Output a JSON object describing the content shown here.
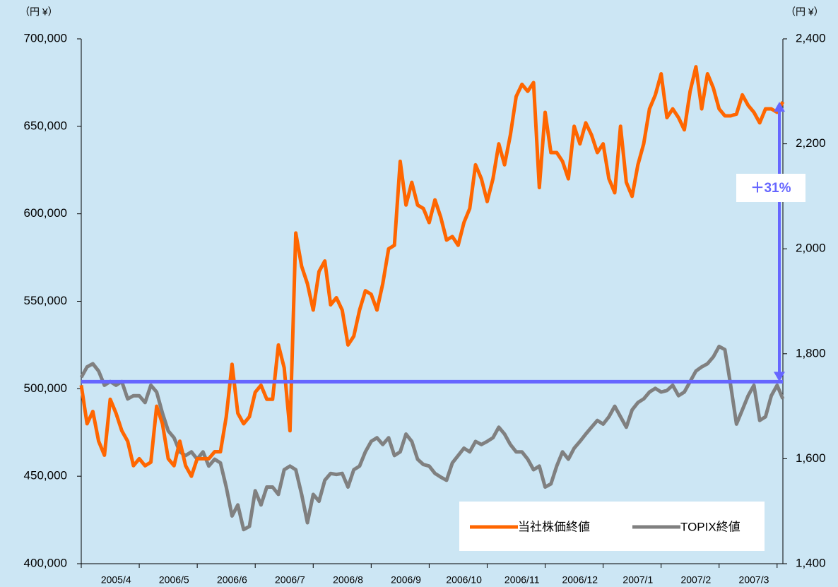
{
  "chart_data": {
    "type": "line",
    "y_unit_label": "（円 ¥）",
    "y2_unit_label": "（円 ¥）",
    "categories": [
      null,
      null,
      null,
      null,
      null,
      null,
      "2005/4",
      null,
      null,
      null,
      null,
      null,
      null,
      null,
      null,
      null,
      "2006/5",
      null,
      null,
      null,
      null,
      null,
      null,
      null,
      null,
      null,
      "2006/6",
      null,
      null,
      null,
      null,
      null,
      null,
      null,
      null,
      null,
      "2006/7",
      null,
      null,
      null,
      null,
      null,
      null,
      null,
      null,
      null,
      "2006/8",
      null,
      null,
      null,
      null,
      null,
      null,
      null,
      null,
      null,
      "2006/9",
      null,
      null,
      null,
      null,
      null,
      null,
      null,
      null,
      null,
      "2006/10",
      null,
      null,
      null,
      null,
      null,
      null,
      null,
      null,
      null,
      "2006/11",
      null,
      null,
      null,
      null,
      null,
      null,
      null,
      null,
      null,
      "2006/12",
      null,
      null,
      null,
      null,
      null,
      null,
      null,
      null,
      null,
      "2007/1",
      null,
      null,
      null,
      null,
      null,
      null,
      null,
      null,
      null,
      "2007/2",
      null,
      null,
      null,
      null,
      null,
      null,
      null,
      null,
      null,
      "2007/3",
      null,
      null,
      null,
      null,
      null
    ],
    "series": [
      {
        "name": "当社株価終値",
        "color": "#ff6600",
        "axis": "y",
        "values": [
          502000,
          480000,
          487000,
          470000,
          462000,
          494000,
          486000,
          476000,
          470000,
          456000,
          460000,
          456000,
          458000,
          490000,
          480000,
          460000,
          456000,
          470000,
          456000,
          450000,
          460000,
          460000,
          460000,
          464000,
          464000,
          484000,
          514000,
          486000,
          480000,
          484000,
          498000,
          502000,
          494000,
          494000,
          525000,
          512000,
          476000,
          589000,
          570000,
          560000,
          545000,
          567000,
          573000,
          548000,
          552000,
          545000,
          525000,
          530000,
          545000,
          556000,
          554000,
          545000,
          560000,
          580000,
          582000,
          630000,
          605000,
          618000,
          605000,
          603000,
          595000,
          608000,
          598000,
          585000,
          587000,
          582000,
          595000,
          603000,
          628000,
          620000,
          607000,
          620000,
          640000,
          628000,
          645000,
          667000,
          674000,
          670000,
          675000,
          615000,
          658000,
          635000,
          635000,
          630000,
          620000,
          650000,
          640000,
          652000,
          645000,
          635000,
          640000,
          620000,
          612000,
          650000,
          618000,
          610000,
          628000,
          640000,
          660000,
          668000,
          680000,
          655000,
          660000,
          655000,
          648000,
          670000,
          684000,
          660000,
          680000,
          672000,
          660000,
          656000,
          656000,
          657000,
          668000,
          662000,
          658000,
          652000,
          660000,
          660000,
          658000,
          664000
        ]
      },
      {
        "name": "TOPIX終値",
        "color": "#808080",
        "axis": "y2",
        "values": [
          1755,
          1775,
          1781,
          1767,
          1740,
          1747,
          1740,
          1747,
          1714,
          1720,
          1720,
          1707,
          1740,
          1727,
          1687,
          1653,
          1640,
          1613,
          1606,
          1613,
          1599,
          1613,
          1586,
          1599,
          1592,
          1546,
          1491,
          1512,
          1465,
          1471,
          1539,
          1512,
          1546,
          1546,
          1532,
          1579,
          1586,
          1579,
          1532,
          1478,
          1532,
          1519,
          1559,
          1572,
          1570,
          1572,
          1546,
          1579,
          1586,
          1613,
          1633,
          1640,
          1627,
          1640,
          1606,
          1613,
          1647,
          1633,
          1599,
          1589,
          1586,
          1572,
          1565,
          1559,
          1592,
          1606,
          1620,
          1613,
          1633,
          1627,
          1633,
          1640,
          1660,
          1647,
          1627,
          1613,
          1613,
          1599,
          1579,
          1586,
          1546,
          1552,
          1586,
          1613,
          1599,
          1620,
          1633,
          1647,
          1660,
          1673,
          1666,
          1680,
          1700,
          1680,
          1660,
          1693,
          1707,
          1714,
          1727,
          1734,
          1727,
          1730,
          1740,
          1720,
          1727,
          1747,
          1767,
          1775,
          1781,
          1794,
          1814,
          1808,
          1740,
          1666,
          1693,
          1720,
          1740,
          1673,
          1680,
          1720,
          1740,
          1714
        ]
      }
    ],
    "ylim": [
      400000,
      700000
    ],
    "yticks": [
      {
        "value": 400000,
        "label": "400,000"
      },
      {
        "value": 450000,
        "label": "450,000"
      },
      {
        "value": 500000,
        "label": "500,000"
      },
      {
        "value": 550000,
        "label": "550,000"
      },
      {
        "value": 600000,
        "label": "600,000"
      },
      {
        "value": 650000,
        "label": "650,000"
      },
      {
        "value": 700000,
        "label": "700,000"
      }
    ],
    "y2lim": [
      1400,
      2400
    ],
    "y2ticks": [
      {
        "value": 1400,
        "label": "1,400"
      },
      {
        "value": 1600,
        "label": "1,600"
      },
      {
        "value": 1800,
        "label": "1,800"
      },
      {
        "value": 2000,
        "label": "2,000"
      },
      {
        "value": 2200,
        "label": "2,200"
      },
      {
        "value": 2400,
        "label": "2,400"
      }
    ],
    "annotation": {
      "text": "＋31%",
      "from": 504000,
      "to": 664000,
      "color": "#6666ff"
    },
    "legend": "lower right"
  }
}
